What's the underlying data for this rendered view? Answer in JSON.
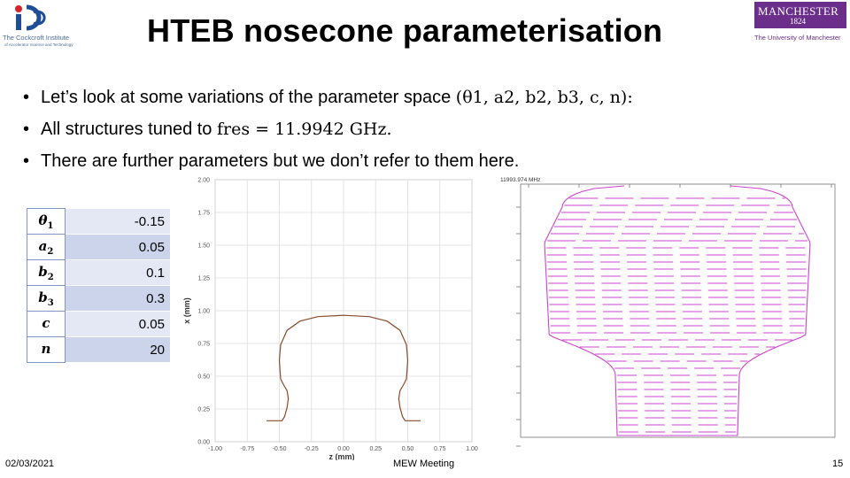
{
  "title": "HTEB nosecone parameterisation",
  "logo_left": {
    "line1": "The Cockcroft Institute",
    "line2": "of Accelerator Science and Technology",
    "icon": "cockcroft-logo-icon"
  },
  "logo_right": {
    "brand": "MANCHESTER",
    "year": "1824",
    "subtitle": "The University of Manchester",
    "color": "#6b2e8a"
  },
  "bullets": [
    {
      "text": "Let’s look at some variations of the parameter space ",
      "math": "(θ1, a2, b2, b3, c, n):"
    },
    {
      "text": "All structures tuned to ",
      "math": "fres = 11.9942 GHz."
    },
    {
      "text": "There are further parameters but we don’t refer to them here.",
      "math": ""
    }
  ],
  "params_table": [
    {
      "symbol": "θ",
      "sub": "1",
      "value": "-0.15"
    },
    {
      "symbol": "a",
      "sub": "2",
      "value": "0.05"
    },
    {
      "symbol": "b",
      "sub": "2",
      "value": "0.1"
    },
    {
      "symbol": "b",
      "sub": "3",
      "value": "0.3"
    },
    {
      "symbol": "c",
      "sub": "",
      "value": "0.05"
    },
    {
      "symbol": "n",
      "sub": "",
      "value": "20"
    }
  ],
  "chart_data": [
    {
      "type": "line",
      "title": "",
      "xlabel": "z (mm)",
      "ylabel": "x (mm)",
      "xlim": [
        -1.0,
        1.0
      ],
      "ylim": [
        0.0,
        2.0
      ],
      "xticks": [
        "-1.00",
        "-0.75",
        "-0.50",
        "-0.25",
        "0.00",
        "0.25",
        "0.50",
        "0.75",
        "1.00"
      ],
      "yticks": [
        "0.00",
        "0.25",
        "0.50",
        "0.75",
        "1.00",
        "1.25",
        "1.50",
        "1.75",
        "2.00"
      ],
      "grid": true,
      "color": "#8a4a2a",
      "series": [
        {
          "x": [
            -0.6,
            -0.48,
            -0.46,
            -0.44,
            -0.43,
            -0.44,
            -0.47,
            -0.49,
            -0.5,
            -0.49,
            -0.44,
            -0.34,
            -0.2,
            0.0,
            0.2,
            0.34,
            0.44,
            0.49,
            0.5,
            0.49,
            0.47,
            0.44,
            0.43,
            0.44,
            0.46,
            0.48,
            0.6
          ],
          "y": [
            0.16,
            0.16,
            0.19,
            0.26,
            0.33,
            0.39,
            0.44,
            0.48,
            0.62,
            0.74,
            0.85,
            0.92,
            0.955,
            0.965,
            0.955,
            0.92,
            0.85,
            0.74,
            0.62,
            0.48,
            0.44,
            0.39,
            0.33,
            0.26,
            0.19,
            0.16,
            0.16
          ]
        }
      ]
    },
    {
      "type": "line",
      "title": "",
      "header": "11993.974 MHz",
      "color": "#cc44cc"
    }
  ],
  "footer": {
    "date": "02/03/2021",
    "center": "MEW Meeting",
    "page": "15"
  }
}
